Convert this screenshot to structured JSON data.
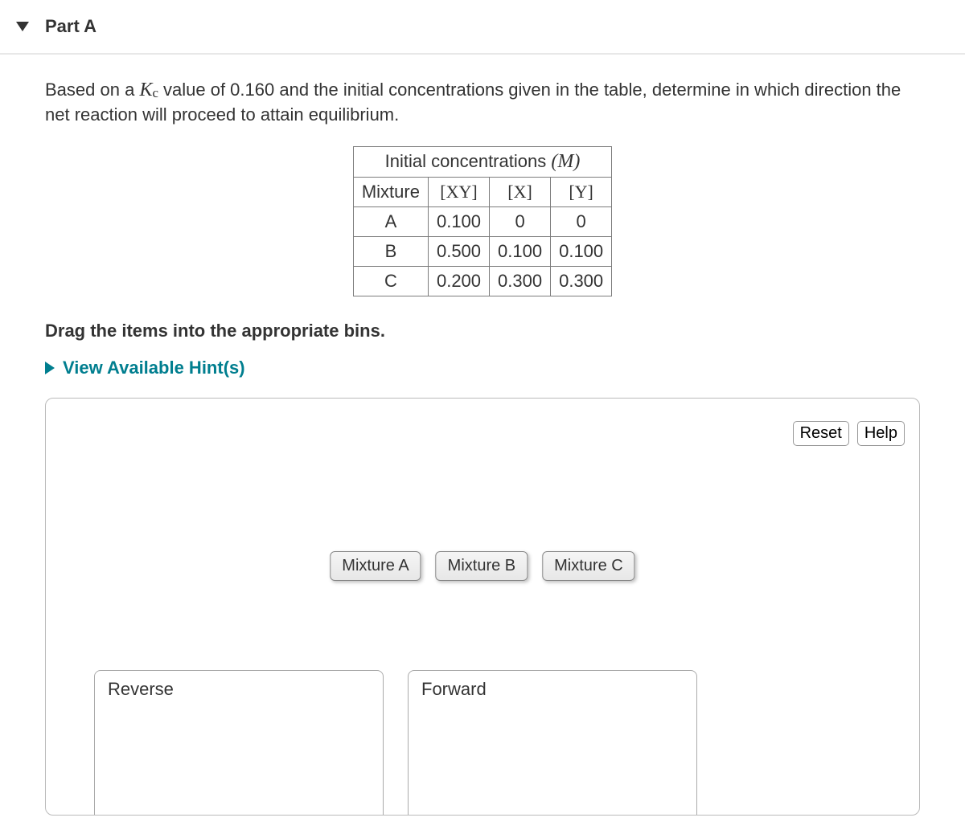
{
  "part": {
    "label": "Part A"
  },
  "question": {
    "prefix": "Based on a ",
    "kc_html": "K<sub>c</sub>",
    "mid": " value of  0.160 and the initial concentrations given in the table, determine in which direction the net reaction will proceed to attain equilibrium."
  },
  "table": {
    "title": "Initial concentrations ",
    "title_unit": "(M)",
    "headers": [
      "Mixture",
      "[XY]",
      "[X]",
      "[Y]"
    ],
    "rows": [
      [
        "A",
        "0.100",
        "0",
        "0"
      ],
      [
        "B",
        "0.500",
        "0.100",
        "0.100"
      ],
      [
        "C",
        "0.200",
        "0.300",
        "0.300"
      ]
    ]
  },
  "instruction": "Drag the items into the appropriate bins.",
  "hints": {
    "label": "View Available Hint(s)"
  },
  "workspace": {
    "reset": "Reset",
    "help": "Help",
    "items": [
      "Mixture A",
      "Mixture B",
      "Mixture C"
    ],
    "bins": [
      "Reverse",
      "Forward"
    ]
  }
}
